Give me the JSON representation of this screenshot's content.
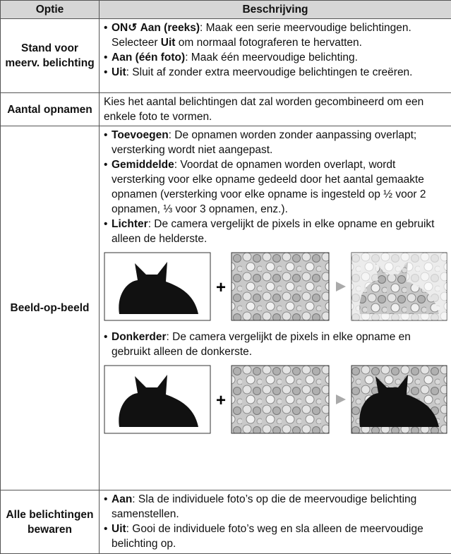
{
  "table": {
    "header": [
      "Optie",
      "Beschrijving"
    ],
    "rows": [
      {
        "option": "Stand voor meerv. belichting",
        "items": [
          {
            "icon": "ON↺",
            "term": "Aan (reeks)",
            "text": [
              ": Maak een serie meervoudige belichtingen. Selecteer ",
              "Uit",
              " om normaal fotograferen te hervatten."
            ]
          },
          {
            "term": "Aan (één foto)",
            "text": [
              ": Maak één meervoudige belichting."
            ]
          },
          {
            "term": "Uit",
            "text": [
              ": Sluit af zonder extra meervoudige belichtingen te creëren."
            ]
          }
        ]
      },
      {
        "option": "Aantal opnamen",
        "description": "Kies het aantal belichtingen dat zal worden gecombineerd om een enkele foto te vormen."
      },
      {
        "option": "Beeld-op-beeld",
        "items": [
          {
            "term": "Toevoegen",
            "text": [
              ": De opnamen worden zonder aanpassing overlapt; versterking wordt niet aangepast."
            ]
          },
          {
            "term": "Gemiddelde",
            "text": [
              ": Voordat de opnamen worden overlapt, wordt versterking voor elke opname gedeeld door het aantal gemaakte opnamen (versterking voor elke opname is ingesteld op ½ voor 2 opnamen, ⅓ voor 3 opnamen, enz.)."
            ]
          },
          {
            "term": "Lichter",
            "text": [
              ": De camera vergelijkt de pixels in elke opname en gebruikt alleen de helderste."
            ]
          },
          {
            "term": "Donkerder",
            "text": [
              ": De camera vergelijkt de pixels in elke opname en gebruikt alleen de donkerste."
            ]
          }
        ]
      },
      {
        "option": "Alle belichtingen bewaren",
        "items": [
          {
            "term": "Aan",
            "text": [
              ": Sla de individuele foto’s op die de meervoudige belichting samenstellen."
            ]
          },
          {
            "term": "Uit",
            "text": [
              ": Gooi de individuele foto’s weg en sla alleen de meervoudige belichting op."
            ]
          }
        ]
      }
    ]
  }
}
